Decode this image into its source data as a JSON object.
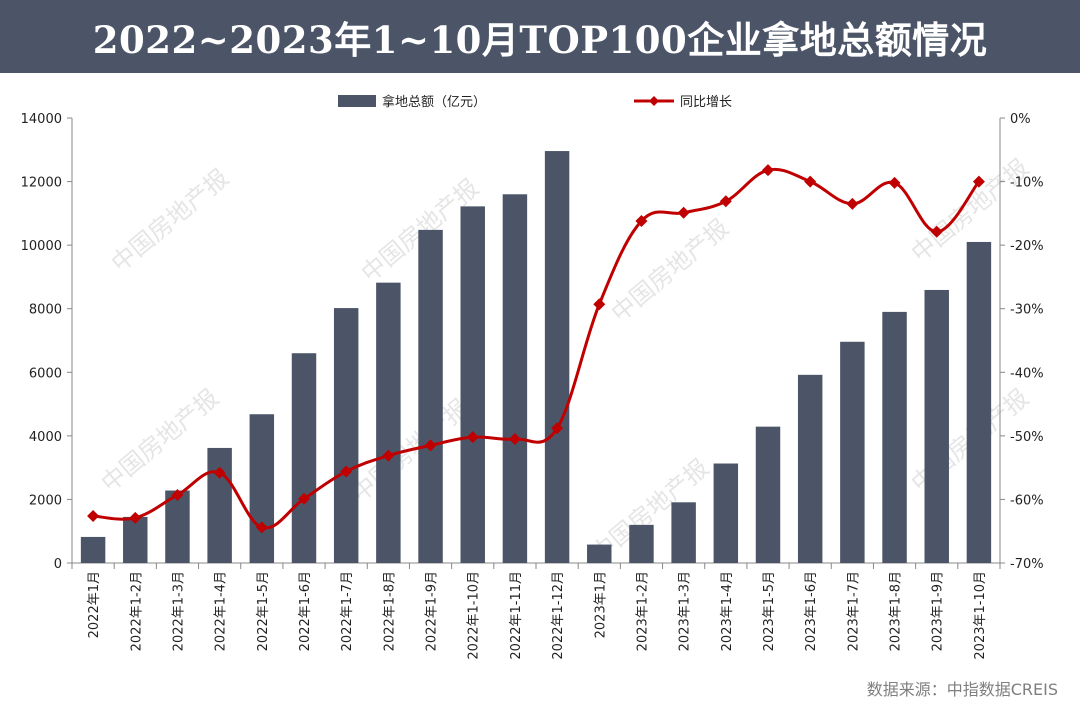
{
  "header": {
    "title": "2022~2023年1~10月TOP100企业拿地总额情况"
  },
  "source": "数据来源：中指数据CREIS",
  "watermark": "中国房地产报",
  "colors": {
    "header_bg": "#4b5567",
    "bar": "#4b5567",
    "line": "#c00000"
  },
  "chart_data": {
    "type": "bar+line",
    "categories": [
      "2022年1月",
      "2022年1-2月",
      "2022年1-3月",
      "2022年1-4月",
      "2022年1-5月",
      "2022年1-6月",
      "2022年1-7月",
      "2022年1-8月",
      "2022年1-9月",
      "2022年1-10月",
      "2022年1-11月",
      "2022年1-12月",
      "2023年1月",
      "2023年1-2月",
      "2023年1-3月",
      "2023年1-4月",
      "2023年1-5月",
      "2023年1-6月",
      "2023年1-7月",
      "2023年1-8月",
      "2023年1-9月",
      "2023年1-10月"
    ],
    "series": [
      {
        "name": "拿地总额（亿元）",
        "type": "bar",
        "axis": "left",
        "values": [
          820,
          1450,
          2280,
          3620,
          4680,
          6600,
          8020,
          8820,
          10480,
          11220,
          11600,
          12960,
          580,
          1200,
          1910,
          3130,
          4290,
          5920,
          6960,
          7900,
          8590,
          10100
        ]
      },
      {
        "name": "同比增长",
        "type": "line",
        "axis": "right",
        "values": [
          -62.6,
          -62.9,
          -59.3,
          -55.8,
          -64.4,
          -59.9,
          -55.6,
          -53.1,
          -51.5,
          -50.2,
          -50.5,
          -48.8,
          -29.3,
          -16.2,
          -14.9,
          -13.1,
          -8.2,
          -10.0,
          -13.5,
          -10.2,
          -17.9,
          -10.0
        ]
      }
    ],
    "y_left": {
      "min": 0,
      "max": 14000,
      "ticks": [
        0,
        2000,
        4000,
        6000,
        8000,
        10000,
        12000,
        14000
      ]
    },
    "y_right": {
      "min": -70,
      "max": 0,
      "ticks": [
        "0%",
        "-10%",
        "-20%",
        "-30%",
        "-40%",
        "-50%",
        "-60%",
        "-70%"
      ]
    },
    "legend_position": "top-center",
    "grid": false
  }
}
